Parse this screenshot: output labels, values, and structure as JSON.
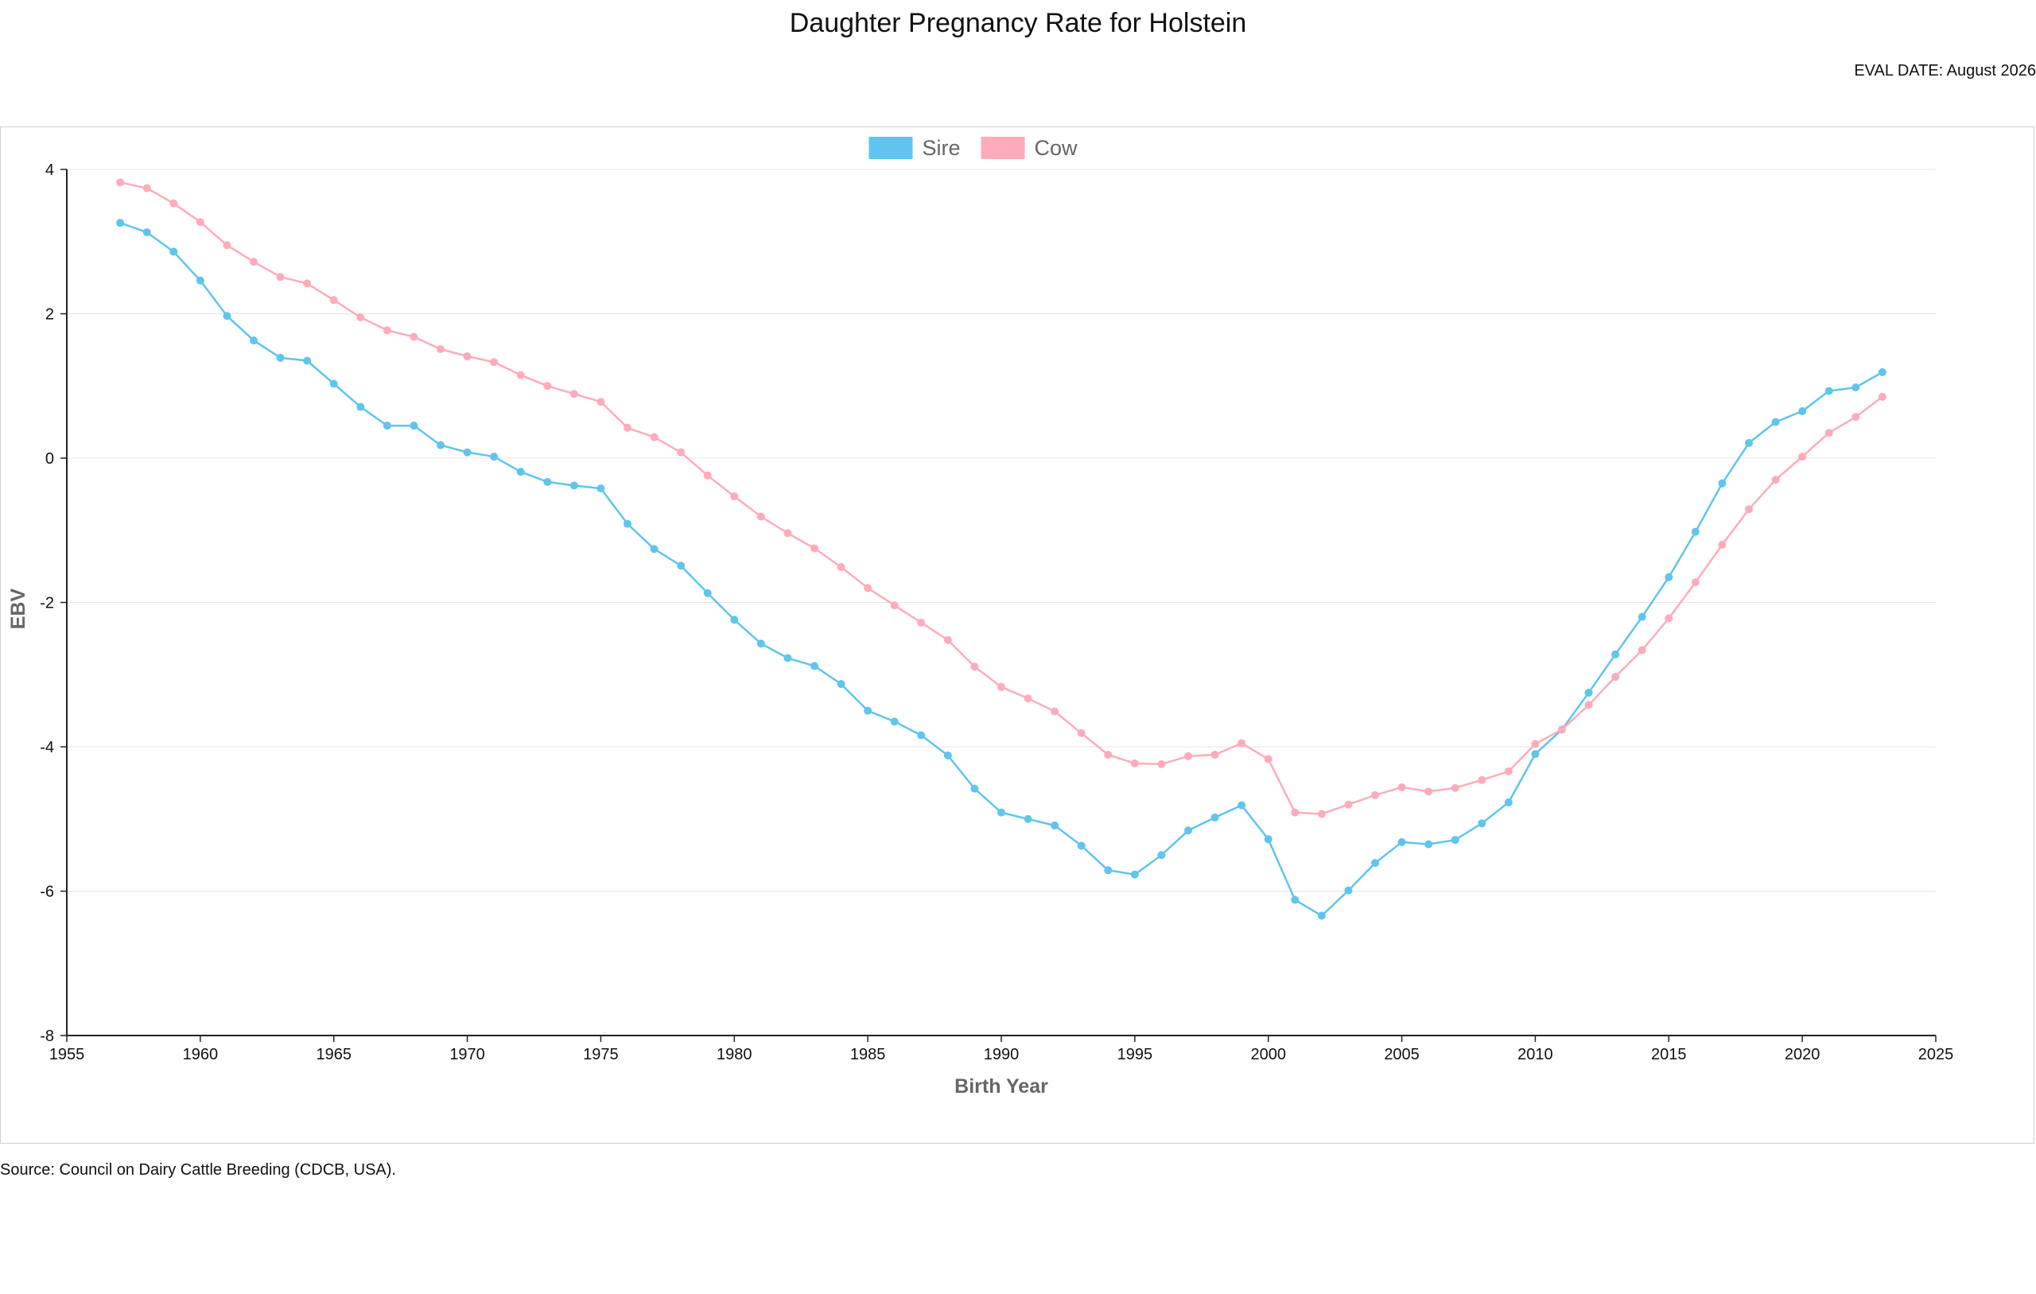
{
  "page": {
    "title": "Daughter Pregnancy Rate for Holstein",
    "eval_date": "EVAL DATE: August 2026",
    "source": "Source: Council on Dairy Cattle Breeding (CDCB, USA)."
  },
  "chart_data": {
    "type": "line",
    "title": "Daughter Pregnancy Rate for Holstein",
    "xlabel": "Birth Year",
    "ylabel": "EBV",
    "xlim": [
      1955,
      2025
    ],
    "ylim": [
      -8,
      4
    ],
    "x_ticks": [
      1955,
      1960,
      1965,
      1970,
      1975,
      1980,
      1985,
      1990,
      1995,
      2000,
      2005,
      2010,
      2015,
      2020,
      2025
    ],
    "y_ticks": [
      -8,
      -6,
      -4,
      -2,
      0,
      2,
      4
    ],
    "grid": true,
    "legend_position": "top-center",
    "x": [
      1957,
      1958,
      1959,
      1960,
      1961,
      1962,
      1963,
      1964,
      1965,
      1966,
      1967,
      1968,
      1969,
      1970,
      1971,
      1972,
      1973,
      1974,
      1975,
      1976,
      1977,
      1978,
      1979,
      1980,
      1981,
      1982,
      1983,
      1984,
      1985,
      1986,
      1987,
      1988,
      1989,
      1990,
      1991,
      1992,
      1993,
      1994,
      1995,
      1996,
      1997,
      1998,
      1999,
      2000,
      2001,
      2002,
      2003,
      2004,
      2005,
      2006,
      2007,
      2008,
      2009,
      2010,
      2011,
      2012,
      2013,
      2014,
      2015,
      2016,
      2017,
      2018,
      2019,
      2020,
      2021,
      2022,
      2023
    ],
    "series": [
      {
        "name": "Sire",
        "color": "#5fc5ed",
        "values": [
          3.26,
          3.13,
          2.86,
          2.46,
          1.97,
          1.63,
          1.39,
          1.35,
          1.03,
          0.71,
          0.45,
          0.45,
          0.18,
          0.08,
          0.02,
          -0.19,
          -0.33,
          -0.38,
          -0.42,
          -0.91,
          -1.26,
          -1.49,
          -1.87,
          -2.24,
          -2.57,
          -2.77,
          -2.88,
          -3.13,
          -3.5,
          -3.65,
          -3.84,
          -4.12,
          -4.58,
          -4.91,
          -5.0,
          -5.09,
          -5.37,
          -5.71,
          -5.77,
          -5.5,
          -5.16,
          -4.98,
          -4.81,
          -5.28,
          -6.12,
          -6.34,
          -5.99,
          -5.61,
          -5.32,
          -5.35,
          -5.29,
          -5.06,
          -4.77,
          -4.1,
          -3.76,
          -3.25,
          -2.72,
          -2.2,
          -1.65,
          -1.02,
          -0.35,
          0.21,
          0.5,
          0.65,
          0.93,
          0.98,
          1.19
        ]
      },
      {
        "name": "Cow",
        "color": "#ffabbc",
        "values": [
          3.82,
          3.74,
          3.53,
          3.27,
          2.95,
          2.72,
          2.51,
          2.42,
          2.19,
          1.95,
          1.77,
          1.68,
          1.51,
          1.41,
          1.33,
          1.15,
          1.0,
          0.89,
          0.78,
          0.42,
          0.29,
          0.08,
          -0.24,
          -0.53,
          -0.81,
          -1.04,
          -1.25,
          -1.51,
          -1.8,
          -2.04,
          -2.28,
          -2.52,
          -2.89,
          -3.17,
          -3.33,
          -3.51,
          -3.81,
          -4.11,
          -4.23,
          -4.24,
          -4.13,
          -4.11,
          -3.95,
          -4.17,
          -4.91,
          -4.93,
          -4.8,
          -4.67,
          -4.56,
          -4.62,
          -4.57,
          -4.46,
          -4.34,
          -3.96,
          -3.76,
          -3.42,
          -3.03,
          -2.66,
          -2.22,
          -1.72,
          -1.2,
          -0.71,
          -0.3,
          0.02,
          0.35,
          0.57,
          0.85
        ]
      }
    ]
  }
}
